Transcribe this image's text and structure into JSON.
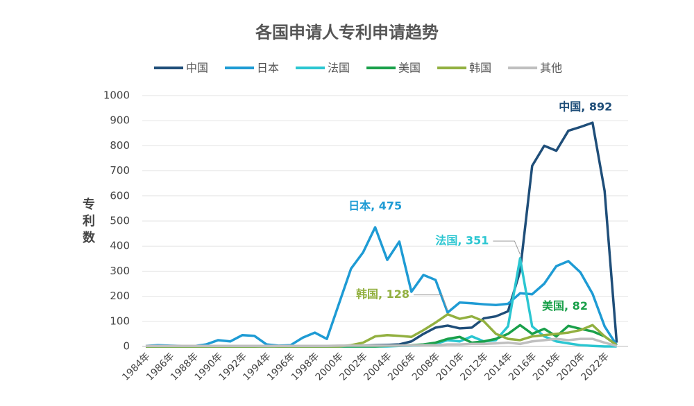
{
  "chart_data": {
    "type": "line",
    "title": "各国申请人专利申请趋势",
    "y_label": "专利数",
    "categories": [
      "1984年",
      null,
      "1986年",
      null,
      "1988年",
      null,
      "1990年",
      null,
      "1992年",
      null,
      "1994年",
      null,
      "1996年",
      null,
      "1998年",
      null,
      "2000年",
      null,
      "2002年",
      null,
      "2004年",
      null,
      "2006年",
      null,
      "2008年",
      null,
      "2010年",
      null,
      "2012年",
      null,
      "2014年",
      null,
      "2016年",
      null,
      "2018年",
      null,
      "2020年",
      null,
      "2022年",
      null
    ],
    "ylim": [
      0,
      1000
    ],
    "yticks": [
      0,
      100,
      200,
      300,
      400,
      500,
      600,
      700,
      800,
      900,
      1000
    ],
    "grid": true,
    "series": [
      {
        "name": "中国",
        "color": "#1f4e79",
        "values": [
          0,
          0,
          0,
          0,
          0,
          0,
          0,
          0,
          0,
          0,
          0,
          0,
          0,
          0,
          0,
          0,
          0,
          2,
          3,
          5,
          6,
          8,
          20,
          50,
          75,
          83,
          72,
          75,
          112,
          120,
          140,
          300,
          720,
          800,
          780,
          860,
          875,
          892,
          620,
          15
        ],
        "value_labels": [
          null,
          null,
          null,
          null,
          null,
          null,
          null,
          null,
          null,
          null,
          null,
          null,
          null,
          null,
          null,
          null,
          null,
          null,
          null,
          null,
          null,
          null,
          null,
          null,
          null,
          null,
          null,
          null,
          null,
          null,
          null,
          null,
          null,
          null,
          null,
          null,
          null,
          "中国, 892",
          null,
          null
        ]
      },
      {
        "name": "日本",
        "color": "#1e9bd4",
        "values": [
          2,
          5,
          3,
          2,
          1,
          8,
          25,
          20,
          45,
          42,
          8,
          3,
          5,
          35,
          55,
          30,
          170,
          310,
          375,
          475,
          345,
          418,
          218,
          285,
          265,
          135,
          175,
          172,
          168,
          165,
          170,
          212,
          208,
          250,
          320,
          340,
          295,
          210,
          80,
          5
        ],
        "value_labels": [
          null,
          null,
          null,
          null,
          null,
          null,
          null,
          null,
          null,
          null,
          null,
          null,
          null,
          null,
          null,
          null,
          null,
          null,
          null,
          "日本, 475",
          null,
          null,
          null,
          null,
          null,
          null,
          null,
          null,
          null,
          null,
          null,
          null,
          null,
          null,
          null,
          null,
          null,
          null,
          null,
          null
        ]
      },
      {
        "name": "法国",
        "color": "#2bc6d1",
        "values": [
          0,
          0,
          0,
          0,
          0,
          0,
          0,
          0,
          0,
          0,
          0,
          0,
          0,
          0,
          0,
          0,
          0,
          0,
          0,
          0,
          0,
          2,
          3,
          5,
          10,
          25,
          20,
          40,
          20,
          25,
          80,
          351,
          80,
          40,
          20,
          12,
          5,
          2,
          0,
          0
        ],
        "value_labels": [
          null,
          null,
          null,
          null,
          null,
          null,
          null,
          null,
          null,
          null,
          null,
          null,
          null,
          null,
          null,
          null,
          null,
          null,
          null,
          null,
          null,
          null,
          null,
          null,
          null,
          null,
          null,
          null,
          null,
          null,
          null,
          "法国, 351",
          null,
          null,
          null,
          null,
          null,
          null,
          null,
          null
        ]
      },
      {
        "name": "美国",
        "color": "#1aa04a",
        "values": [
          0,
          0,
          0,
          0,
          0,
          0,
          0,
          0,
          0,
          0,
          2,
          0,
          0,
          0,
          0,
          0,
          0,
          0,
          0,
          0,
          2,
          3,
          5,
          8,
          15,
          30,
          38,
          15,
          20,
          30,
          50,
          85,
          50,
          70,
          40,
          82,
          70,
          60,
          40,
          5
        ],
        "value_labels": [
          null,
          null,
          null,
          null,
          null,
          null,
          null,
          null,
          null,
          null,
          null,
          null,
          null,
          null,
          null,
          null,
          null,
          null,
          null,
          null,
          null,
          null,
          null,
          null,
          null,
          null,
          null,
          null,
          null,
          null,
          null,
          null,
          null,
          null,
          null,
          "美国, 82",
          null,
          null,
          null,
          null
        ]
      },
      {
        "name": "韩国",
        "color": "#92b040",
        "values": [
          0,
          0,
          0,
          0,
          0,
          0,
          0,
          0,
          0,
          0,
          0,
          0,
          0,
          0,
          0,
          0,
          0,
          5,
          15,
          40,
          45,
          42,
          38,
          65,
          95,
          128,
          110,
          120,
          100,
          50,
          30,
          25,
          40,
          45,
          50,
          55,
          65,
          85,
          40,
          5
        ],
        "value_labels": [
          null,
          null,
          null,
          null,
          null,
          null,
          null,
          null,
          null,
          null,
          null,
          null,
          null,
          null,
          null,
          null,
          null,
          null,
          null,
          null,
          null,
          null,
          null,
          null,
          null,
          "韩国, 128",
          null,
          null,
          null,
          null,
          null,
          null,
          null,
          null,
          null,
          null,
          null,
          null,
          null,
          null
        ]
      },
      {
        "name": "其他",
        "color": "#bfbfbf",
        "values": [
          2,
          2,
          2,
          2,
          2,
          2,
          2,
          2,
          2,
          2,
          2,
          2,
          2,
          2,
          2,
          2,
          3,
          3,
          3,
          3,
          3,
          3,
          4,
          5,
          5,
          8,
          8,
          10,
          10,
          12,
          15,
          10,
          20,
          25,
          30,
          25,
          30,
          30,
          15,
          2
        ]
      }
    ]
  }
}
